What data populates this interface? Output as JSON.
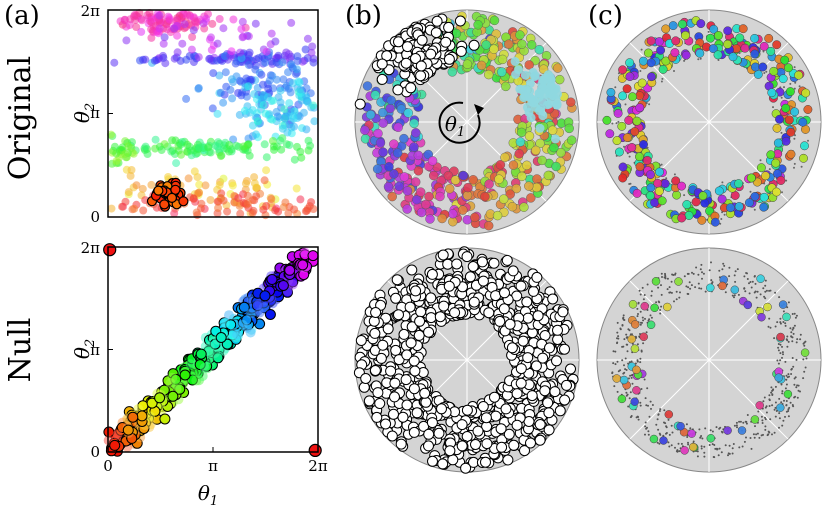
{
  "panel_labels": {
    "a": "(a)",
    "b": "(b)",
    "c": "(c)"
  },
  "row_labels": {
    "top": "Original",
    "bottom": "Null"
  },
  "axes": {
    "x_symbol": "θ",
    "x_sub": "1",
    "y_symbol": "θ",
    "y_sub": "2",
    "ring_symbol": "θ",
    "ring_sub": "1"
  },
  "ticks": {
    "zero": "0",
    "pi": "π",
    "two_pi": "2π"
  },
  "colors": {
    "disk_fill": "#d4d4d4",
    "disk_stroke": "#888888",
    "axis_black": "#000000"
  },
  "chart_data": [
    {
      "id": "a-original",
      "type": "scatter",
      "title": "Original",
      "xlabel": "θ1",
      "ylabel": "θ2",
      "xlim": [
        0,
        6.283
      ],
      "ylim": [
        0,
        6.283
      ],
      "clusters": [
        {
          "hue": 320,
          "cx": 1.9,
          "cy": 5.95,
          "sx": 0.8,
          "sy": 0.28,
          "n": 120
        },
        {
          "hue": 250,
          "cx": 3.9,
          "cy": 4.8,
          "sx": 1.6,
          "sy": 0.08,
          "n": 90
        },
        {
          "hue": 220,
          "cx": 4.6,
          "cy": 4.1,
          "sx": 0.9,
          "sy": 0.45,
          "n": 110
        },
        {
          "hue": 190,
          "cx": 5.2,
          "cy": 3.2,
          "sx": 0.7,
          "sy": 0.45,
          "n": 90
        },
        {
          "hue": 130,
          "cx": 3.0,
          "cy": 2.1,
          "sx": 1.9,
          "sy": 0.12,
          "n": 110
        },
        {
          "hue": 95,
          "cx": 0.4,
          "cy": 1.9,
          "sx": 0.3,
          "sy": 0.25,
          "n": 30
        },
        {
          "hue": 45,
          "cx": 2.6,
          "cy": 0.9,
          "sx": 1.8,
          "sy": 0.3,
          "n": 70
        },
        {
          "hue": 10,
          "cx": 3.6,
          "cy": 0.3,
          "sx": 1.8,
          "sy": 0.25,
          "n": 100
        },
        {
          "hue": 280,
          "cx": 3.0,
          "cy": 5.5,
          "sx": 1.5,
          "sy": 0.4,
          "n": 40
        }
      ],
      "highlight": {
        "cx": 1.85,
        "cy": 0.7,
        "sx": 0.25,
        "sy": 0.2,
        "n": 40
      }
    },
    {
      "id": "a-null",
      "type": "scatter",
      "title": "Null",
      "xlabel": "θ1",
      "ylabel": "θ2",
      "xlim": [
        0,
        6.283
      ],
      "ylim": [
        0,
        6.283
      ],
      "diagonal_band": {
        "from": [
          0.1,
          0.1
        ],
        "to": [
          6.0,
          6.0
        ],
        "width": 0.35,
        "n": 520
      },
      "corner_points": [
        [
          0.05,
          6.2
        ],
        [
          6.2,
          0.05
        ]
      ]
    },
    {
      "id": "b-original",
      "type": "scatter",
      "layout": "ring",
      "ring_inner": 0.45,
      "ring_outer": 0.95,
      "white_cluster": {
        "angle_deg": 125,
        "spread_deg": 25,
        "n": 160
      },
      "cyan_cluster": {
        "angle_deg": 20,
        "radius": 0.7,
        "n": 60
      },
      "n_colored": 520
    },
    {
      "id": "b-null",
      "type": "scatter",
      "layout": "ring",
      "ring_inner": 0.4,
      "ring_outer": 0.97,
      "n_white": 780
    },
    {
      "id": "c-original",
      "type": "scatter",
      "layout": "ring",
      "ring_inner": 0.6,
      "ring_outer": 0.92,
      "n_colored": 360,
      "n_gray": 160
    },
    {
      "id": "c-null",
      "type": "scatter",
      "layout": "ring",
      "ring_inner": 0.6,
      "ring_outer": 0.88,
      "n_colored": 60,
      "n_gray": 600
    }
  ]
}
